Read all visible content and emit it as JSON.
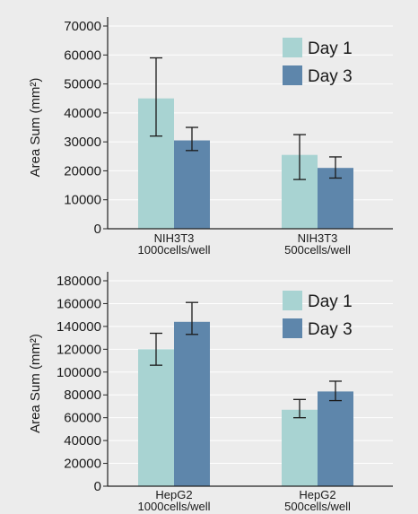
{
  "colors": {
    "background": "#ececec",
    "day1": "#a8d3d2",
    "day3": "#5e86ab",
    "axis": "#222222",
    "grid": "#ffffff"
  },
  "chart_data": [
    {
      "type": "bar",
      "ylabel": "Area Sum (mm²)",
      "ylim": [
        0,
        70000
      ],
      "yticks": [
        0,
        10000,
        20000,
        30000,
        40000,
        50000,
        60000,
        70000
      ],
      "grid": true,
      "legend": "top-right",
      "categories": [
        {
          "line1": "NIH3T3",
          "line2": "1000cells/well"
        },
        {
          "line1": "NIH3T3",
          "line2": "500cells/well"
        }
      ],
      "series": [
        {
          "name": "Day 1",
          "values": [
            45000,
            25500
          ],
          "err_low": [
            32000,
            17000
          ],
          "err_high": [
            59000,
            32500
          ]
        },
        {
          "name": "Day 3",
          "values": [
            30500,
            21000
          ],
          "err_low": [
            27000,
            17500
          ],
          "err_high": [
            35000,
            24800
          ]
        }
      ]
    },
    {
      "type": "bar",
      "ylabel": "Area Sum (mm²)",
      "ylim": [
        0,
        180000
      ],
      "yticks": [
        0,
        20000,
        40000,
        60000,
        80000,
        100000,
        120000,
        140000,
        160000,
        180000
      ],
      "grid": true,
      "legend": "top-right",
      "categories": [
        {
          "line1": "HepG2",
          "line2": "1000cells/well"
        },
        {
          "line1": "HepG2",
          "line2": "500cells/well"
        }
      ],
      "series": [
        {
          "name": "Day 1",
          "values": [
            120000,
            67000
          ],
          "err_low": [
            106000,
            60000
          ],
          "err_high": [
            134000,
            76000
          ]
        },
        {
          "name": "Day 3",
          "values": [
            144000,
            83000
          ],
          "err_low": [
            133000,
            75000
          ],
          "err_high": [
            161000,
            92000
          ]
        }
      ]
    }
  ]
}
